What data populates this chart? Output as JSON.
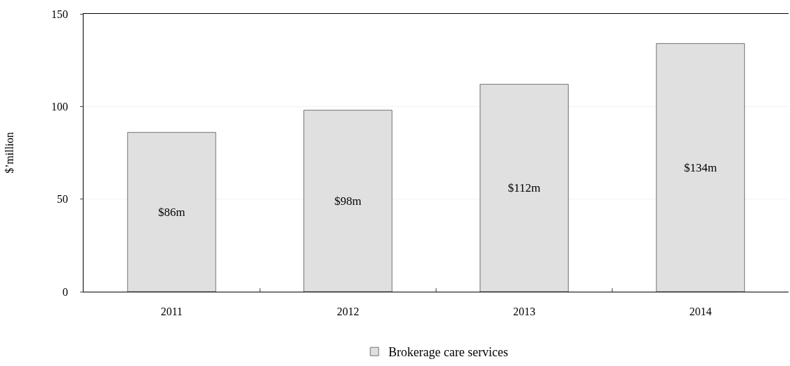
{
  "chart_data": {
    "type": "bar",
    "categories": [
      "2011",
      "2012",
      "2013",
      "2014"
    ],
    "series": [
      {
        "name": "Brokerage care services",
        "color": "#e0e0e0",
        "values": [
          86,
          98,
          112,
          134
        ],
        "value_labels": [
          "$86m",
          "$98m",
          "$112m",
          "$134m"
        ]
      }
    ],
    "ylabel": "$’million",
    "ylim": [
      0,
      150
    ],
    "yticks": [
      0,
      50,
      100,
      150
    ],
    "grid": "y",
    "legend": "bottom"
  }
}
